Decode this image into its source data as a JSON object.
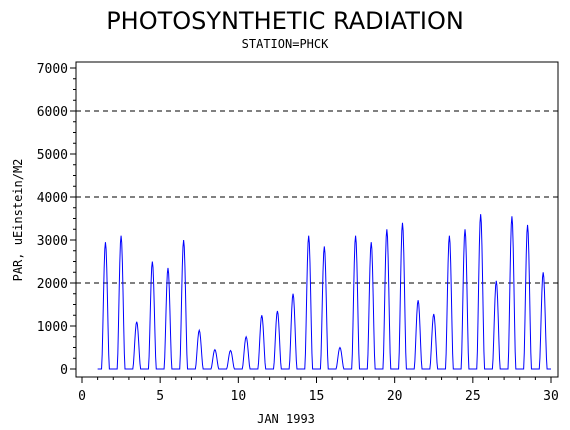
{
  "chart_data": {
    "type": "line",
    "title": "PHOTOSYNTHETIC RADIATION",
    "subtitle": "STATION=PHCK",
    "xlabel": "JAN 1993",
    "ylabel": "PAR, uEinstein/M2",
    "xlim": [
      0,
      30
    ],
    "ylim": [
      0,
      7000
    ],
    "x_ticks": [
      0,
      5,
      10,
      15,
      20,
      25,
      30
    ],
    "y_ticks": [
      0,
      1000,
      2000,
      3000,
      4000,
      5000,
      6000,
      7000
    ],
    "reference_lines": [
      2000,
      4000,
      6000
    ],
    "line_color": "#0000ff",
    "grid": false,
    "series": [
      {
        "daily_peaks": [
          {
            "day": 1,
            "value": 2950
          },
          {
            "day": 2,
            "value": 3100
          },
          {
            "day": 3,
            "value": 1100
          },
          {
            "day": 4,
            "value": 2500
          },
          {
            "day": 5,
            "value": 2350
          },
          {
            "day": 6,
            "value": 3000
          },
          {
            "day": 7,
            "value": 900
          },
          {
            "day": 8,
            "value": 450
          },
          {
            "day": 9,
            "value": 430
          },
          {
            "day": 10,
            "value": 750
          },
          {
            "day": 11,
            "value": 1250
          },
          {
            "day": 12,
            "value": 1350
          },
          {
            "day": 13,
            "value": 1750
          },
          {
            "day": 14,
            "value": 3100
          },
          {
            "day": 15,
            "value": 2850
          },
          {
            "day": 16,
            "value": 500
          },
          {
            "day": 17,
            "value": 3100
          },
          {
            "day": 18,
            "value": 2950
          },
          {
            "day": 19,
            "value": 3250
          },
          {
            "day": 20,
            "value": 3400
          },
          {
            "day": 21,
            "value": 1600
          },
          {
            "day": 22,
            "value": 1280
          },
          {
            "day": 23,
            "value": 3100
          },
          {
            "day": 24,
            "value": 3250
          },
          {
            "day": 25,
            "value": 3600
          },
          {
            "day": 26,
            "value": 2050
          },
          {
            "day": 27,
            "value": 3550
          },
          {
            "day": 28,
            "value": 3350
          },
          {
            "day": 29,
            "value": 2250
          }
        ]
      }
    ]
  }
}
